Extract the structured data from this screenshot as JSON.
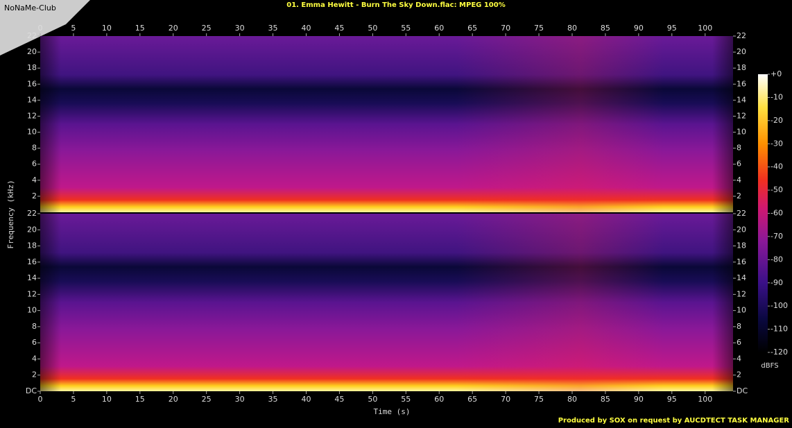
{
  "logo": "NoNaMe-Club",
  "chart_data": {
    "type": "spectrogram",
    "title": "01. Emma Hewitt - Burn The Sky Down.flac: MPEG 100%",
    "x_label": "Time (s)",
    "y_label": "Frequency (kHz)",
    "xlim": [
      0,
      104.2
    ],
    "xticks": [
      0,
      5,
      10,
      15,
      20,
      25,
      30,
      35,
      40,
      45,
      50,
      55,
      60,
      65,
      70,
      75,
      80,
      85,
      90,
      95,
      100
    ],
    "ylim": [
      0,
      22
    ],
    "yticks": [
      {
        "value": 0,
        "label": "DC"
      },
      2,
      4,
      6,
      8,
      10,
      12,
      14,
      16,
      18,
      20,
      22
    ],
    "colorbar": {
      "label": "dBFS",
      "lim": [
        -120,
        0
      ],
      "ticks": [
        {
          "value": 0,
          "label": "+0"
        },
        -10,
        -20,
        -30,
        -40,
        -50,
        -60,
        -70,
        -80,
        -90,
        -100,
        -110,
        -120
      ]
    },
    "footer": "Produced by SOX on request by AUCDTECT TASK MANAGER"
  }
}
